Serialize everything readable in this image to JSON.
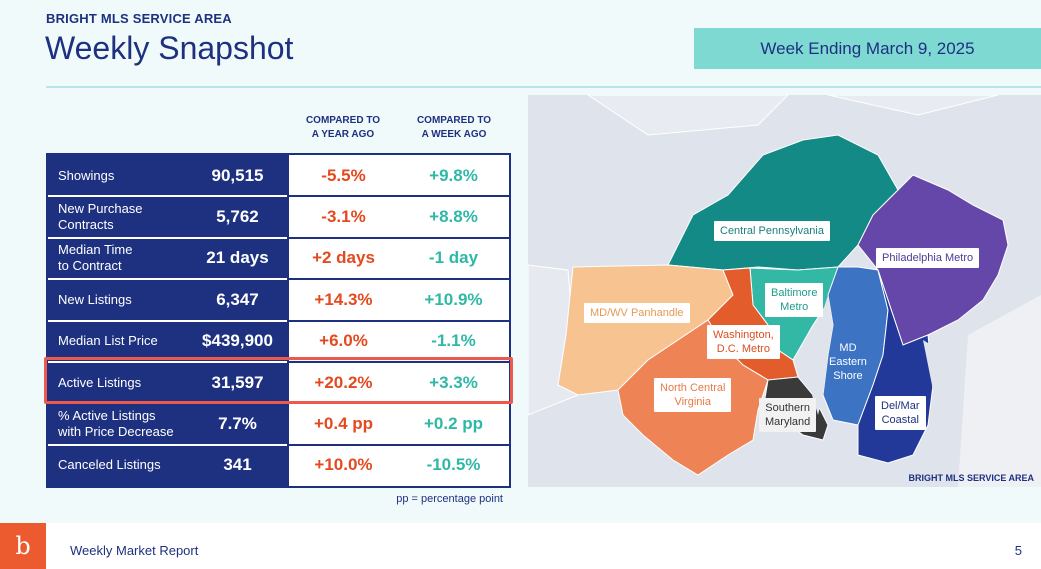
{
  "header": {
    "eyebrow": "BRIGHT MLS SERVICE AREA",
    "title": "Weekly Snapshot",
    "week_ending": "Week Ending March 9, 2025"
  },
  "table": {
    "col_year": "COMPARED TO\nA YEAR AGO",
    "col_week": "COMPARED TO\nA WEEK AGO",
    "rows": [
      {
        "label": "Showings",
        "value": "90,515",
        "year": "-5.5%",
        "week": "+9.8%"
      },
      {
        "label": "New Purchase\nContracts",
        "value": "5,762",
        "year": "-3.1%",
        "week": "+8.8%"
      },
      {
        "label": "Median Time\nto Contract",
        "value": "21 days",
        "year": "+2 days",
        "week": "-1 day"
      },
      {
        "label": "New Listings",
        "value": "6,347",
        "year": "+14.3%",
        "week": "+10.9%"
      },
      {
        "label": "Median List Price",
        "value": "$439,900",
        "year": "+6.0%",
        "week": "-1.1%"
      },
      {
        "label": "Active Listings",
        "value": "31,597",
        "year": "+20.2%",
        "week": "+3.3%"
      },
      {
        "label": "% Active Listings\nwith Price Decrease",
        "value": "7.7%",
        "year": "+0.4 pp",
        "week": "+0.2 pp"
      },
      {
        "label": "Canceled Listings",
        "value": "341",
        "year": "+10.0%",
        "week": "-10.5%"
      }
    ],
    "footnote": "pp = percentage point",
    "highlighted_row": "Active Listings"
  },
  "map": {
    "caption": "BRIGHT MLS SERVICE AREA",
    "regions": [
      {
        "name": "Central Pennsylvania",
        "color": "#138a86"
      },
      {
        "name": "Philadelphia Metro",
        "color": "#6447a8"
      },
      {
        "name": "MD/WV Panhandle",
        "color": "#f6c391"
      },
      {
        "name": "Baltimore\nMetro",
        "color": "#33b8a6"
      },
      {
        "name": "Washington,\nD.C. Metro",
        "color": "#e25c2c"
      },
      {
        "name": "MD\nEastern\nShore",
        "color": "#3c73c3"
      },
      {
        "name": "North Central\nVirginia",
        "color": "#ee8456"
      },
      {
        "name": "Southern\nMaryland",
        "color": "#3a3a3a"
      },
      {
        "name": "Del/Mar\nCoastal",
        "color": "#23399a"
      }
    ]
  },
  "footer": {
    "logo": "b",
    "report": "Weekly Market Report",
    "page": "5"
  },
  "colors": {
    "navy": "#1e3180",
    "negative": "#e4491f",
    "positive": "#2fb8a6",
    "highlight_border": "#ec5a4f",
    "week_box": "#7dd9d1"
  }
}
